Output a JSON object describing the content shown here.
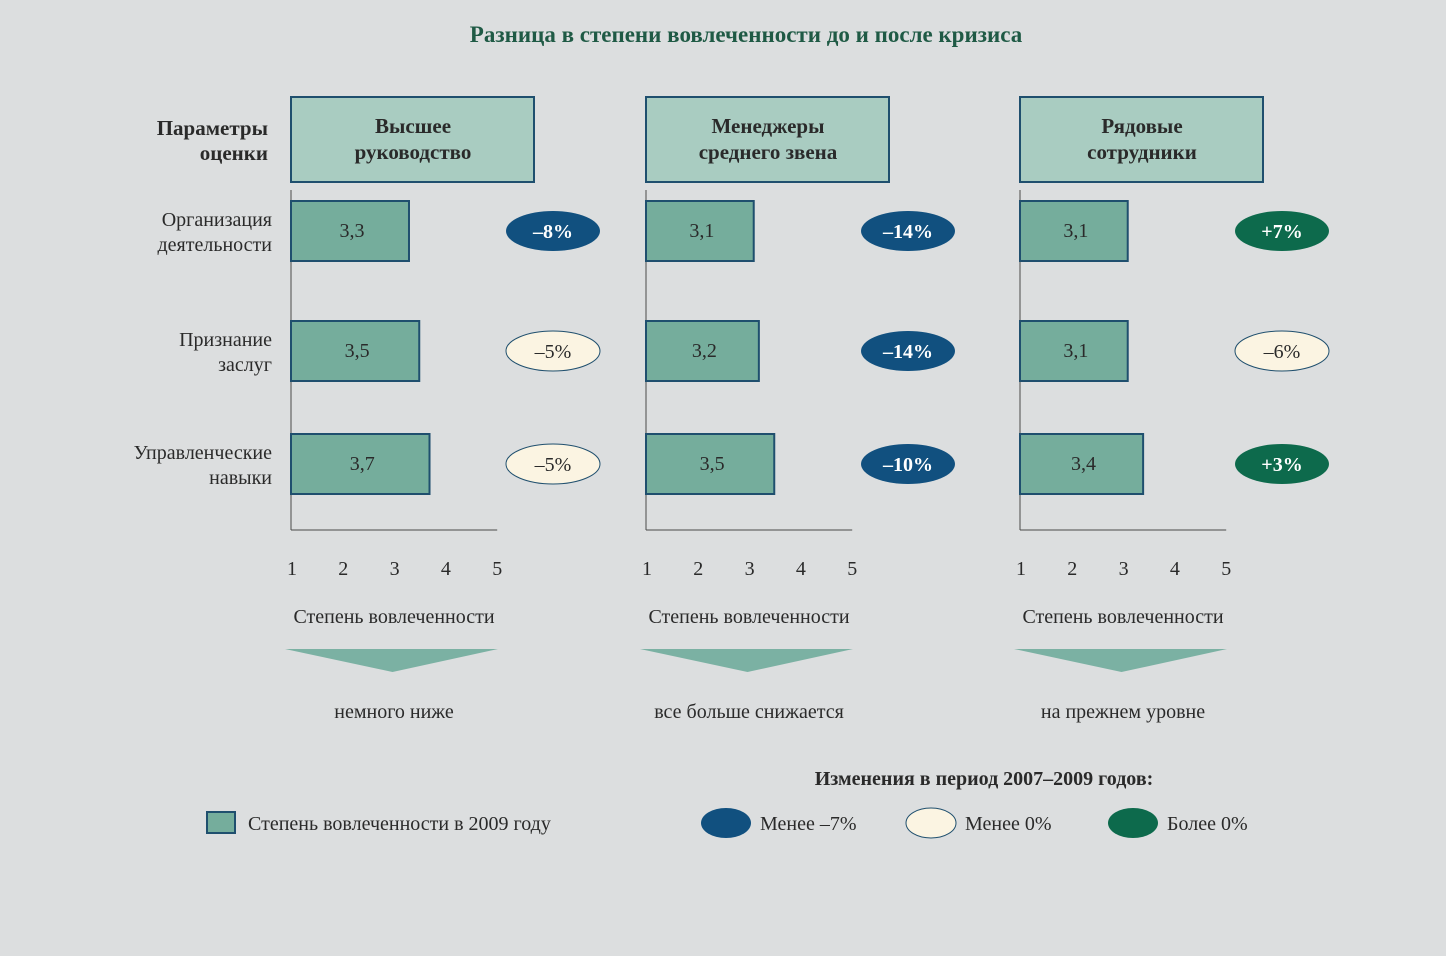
{
  "title": "Разница в степени вовлеченности до и после кризиса",
  "row_header": [
    "Параметры",
    "оценки"
  ],
  "chart_data": {
    "type": "bar",
    "orientation": "horizontal",
    "title": "Разница в степени вовлеченности до и после кризиса",
    "categories": [
      [
        "Организация",
        "деятельности"
      ],
      [
        "Признание",
        "заслуг"
      ],
      [
        "Управленческие",
        "навыки"
      ]
    ],
    "xlim": [
      1,
      5
    ],
    "ticks": [
      "1",
      "2",
      "3",
      "4",
      "5"
    ],
    "xlabel": "Степень вовлеченности",
    "panels": [
      {
        "name": [
          "Высшее",
          "руководство"
        ],
        "values": [
          3.3,
          3.5,
          3.7
        ],
        "value_labels": [
          "3,3",
          "3,5",
          "3,7"
        ],
        "changes": [
          {
            "label": "–8%",
            "class": "less_than_minus_7"
          },
          {
            "label": "–5%",
            "class": "less_than_0"
          },
          {
            "label": "–5%",
            "class": "less_than_0"
          }
        ],
        "trend": "немного ниже"
      },
      {
        "name": [
          "Менеджеры",
          "среднего звена"
        ],
        "values": [
          3.1,
          3.2,
          3.5
        ],
        "value_labels": [
          "3,1",
          "3,2",
          "3,5"
        ],
        "changes": [
          {
            "label": "–14%",
            "class": "less_than_minus_7"
          },
          {
            "label": "–14%",
            "class": "less_than_minus_7"
          },
          {
            "label": "–10%",
            "class": "less_than_minus_7"
          }
        ],
        "trend": "все больше снижается"
      },
      {
        "name": [
          "Рядовые",
          "сотрудники"
        ],
        "values": [
          3.1,
          3.1,
          3.4
        ],
        "value_labels": [
          "3,1",
          "3,1",
          "3,4"
        ],
        "changes": [
          {
            "label": "+7%",
            "class": "more_than_0"
          },
          {
            "label": "–6%",
            "class": "less_than_0"
          },
          {
            "label": "+3%",
            "class": "more_than_0"
          }
        ],
        "trend": "на прежнем уровне"
      }
    ]
  },
  "legend": {
    "title": "Изменения в период  2007–2009 годов:",
    "bar_label": "Степень вовлеченности в  2009 году",
    "classes": [
      {
        "key": "less_than_minus_7",
        "label": "Менее –7%"
      },
      {
        "key": "less_than_0",
        "label": "Менее 0%"
      },
      {
        "key": "more_than_0",
        "label": "Более 0%"
      }
    ]
  },
  "colors": {
    "background": "#dcdedf",
    "title": "#1f5a45",
    "bar_fill": "#75ad9c",
    "bar_stroke": "#1f4f6e",
    "header_fill": "#a9ccc1",
    "axis": "#4a4a4a",
    "less_than_minus_7": "#11507f",
    "less_than_0": "#fbf4e2",
    "more_than_0": "#0d6a4c",
    "arrow": "#7bb1a3"
  }
}
